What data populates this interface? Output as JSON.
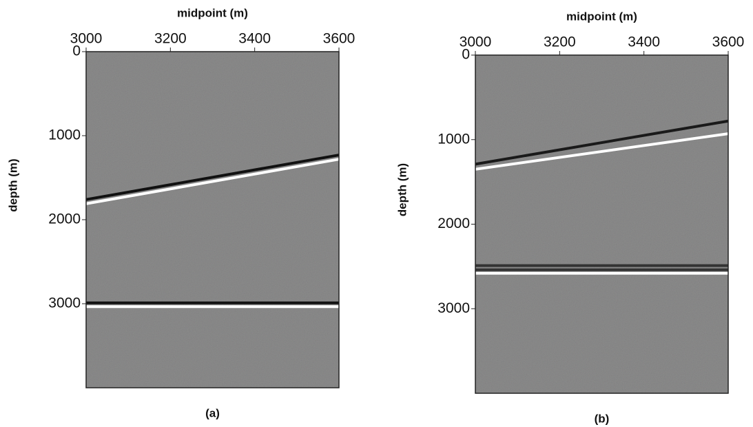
{
  "chart_data": [
    {
      "type": "seismic",
      "title": "midpoint (m)",
      "ylabel": "depth (m)",
      "caption": "(a)",
      "xlim": [
        3000,
        3600
      ],
      "ylim": [
        0,
        4000
      ],
      "xticks": [
        3000,
        3200,
        3400,
        3600
      ],
      "yticks": [
        0,
        1000,
        2000,
        3000
      ],
      "x": [
        3000,
        3600
      ],
      "series": [
        {
          "color": "#111111",
          "values": [
            1760,
            1230
          ]
        },
        {
          "color": "#ffffff",
          "values": [
            1810,
            1280
          ]
        },
        {
          "color": "#111111",
          "values": [
            2990,
            2990
          ]
        },
        {
          "color": "#ffffff",
          "values": [
            3035,
            3035
          ]
        }
      ]
    },
    {
      "type": "seismic",
      "title": "midpoint (m)",
      "ylabel": "depth (m)",
      "caption": "(b)",
      "xlim": [
        3000,
        3600
      ],
      "ylim": [
        0,
        4000
      ],
      "xticks": [
        3000,
        3200,
        3400,
        3600
      ],
      "yticks": [
        0,
        1000,
        2000,
        3000
      ],
      "x": [
        3000,
        3600
      ],
      "series": [
        {
          "color": "#1a1a1a",
          "values": [
            1290,
            780
          ]
        },
        {
          "color": "#ffffff",
          "values": [
            1350,
            930
          ]
        },
        {
          "color": "#333333",
          "values": [
            2490,
            2490
          ]
        },
        {
          "color": "#333333",
          "values": [
            2540,
            2540
          ]
        },
        {
          "color": "#ffffff",
          "values": [
            2580,
            2580
          ]
        }
      ]
    }
  ]
}
